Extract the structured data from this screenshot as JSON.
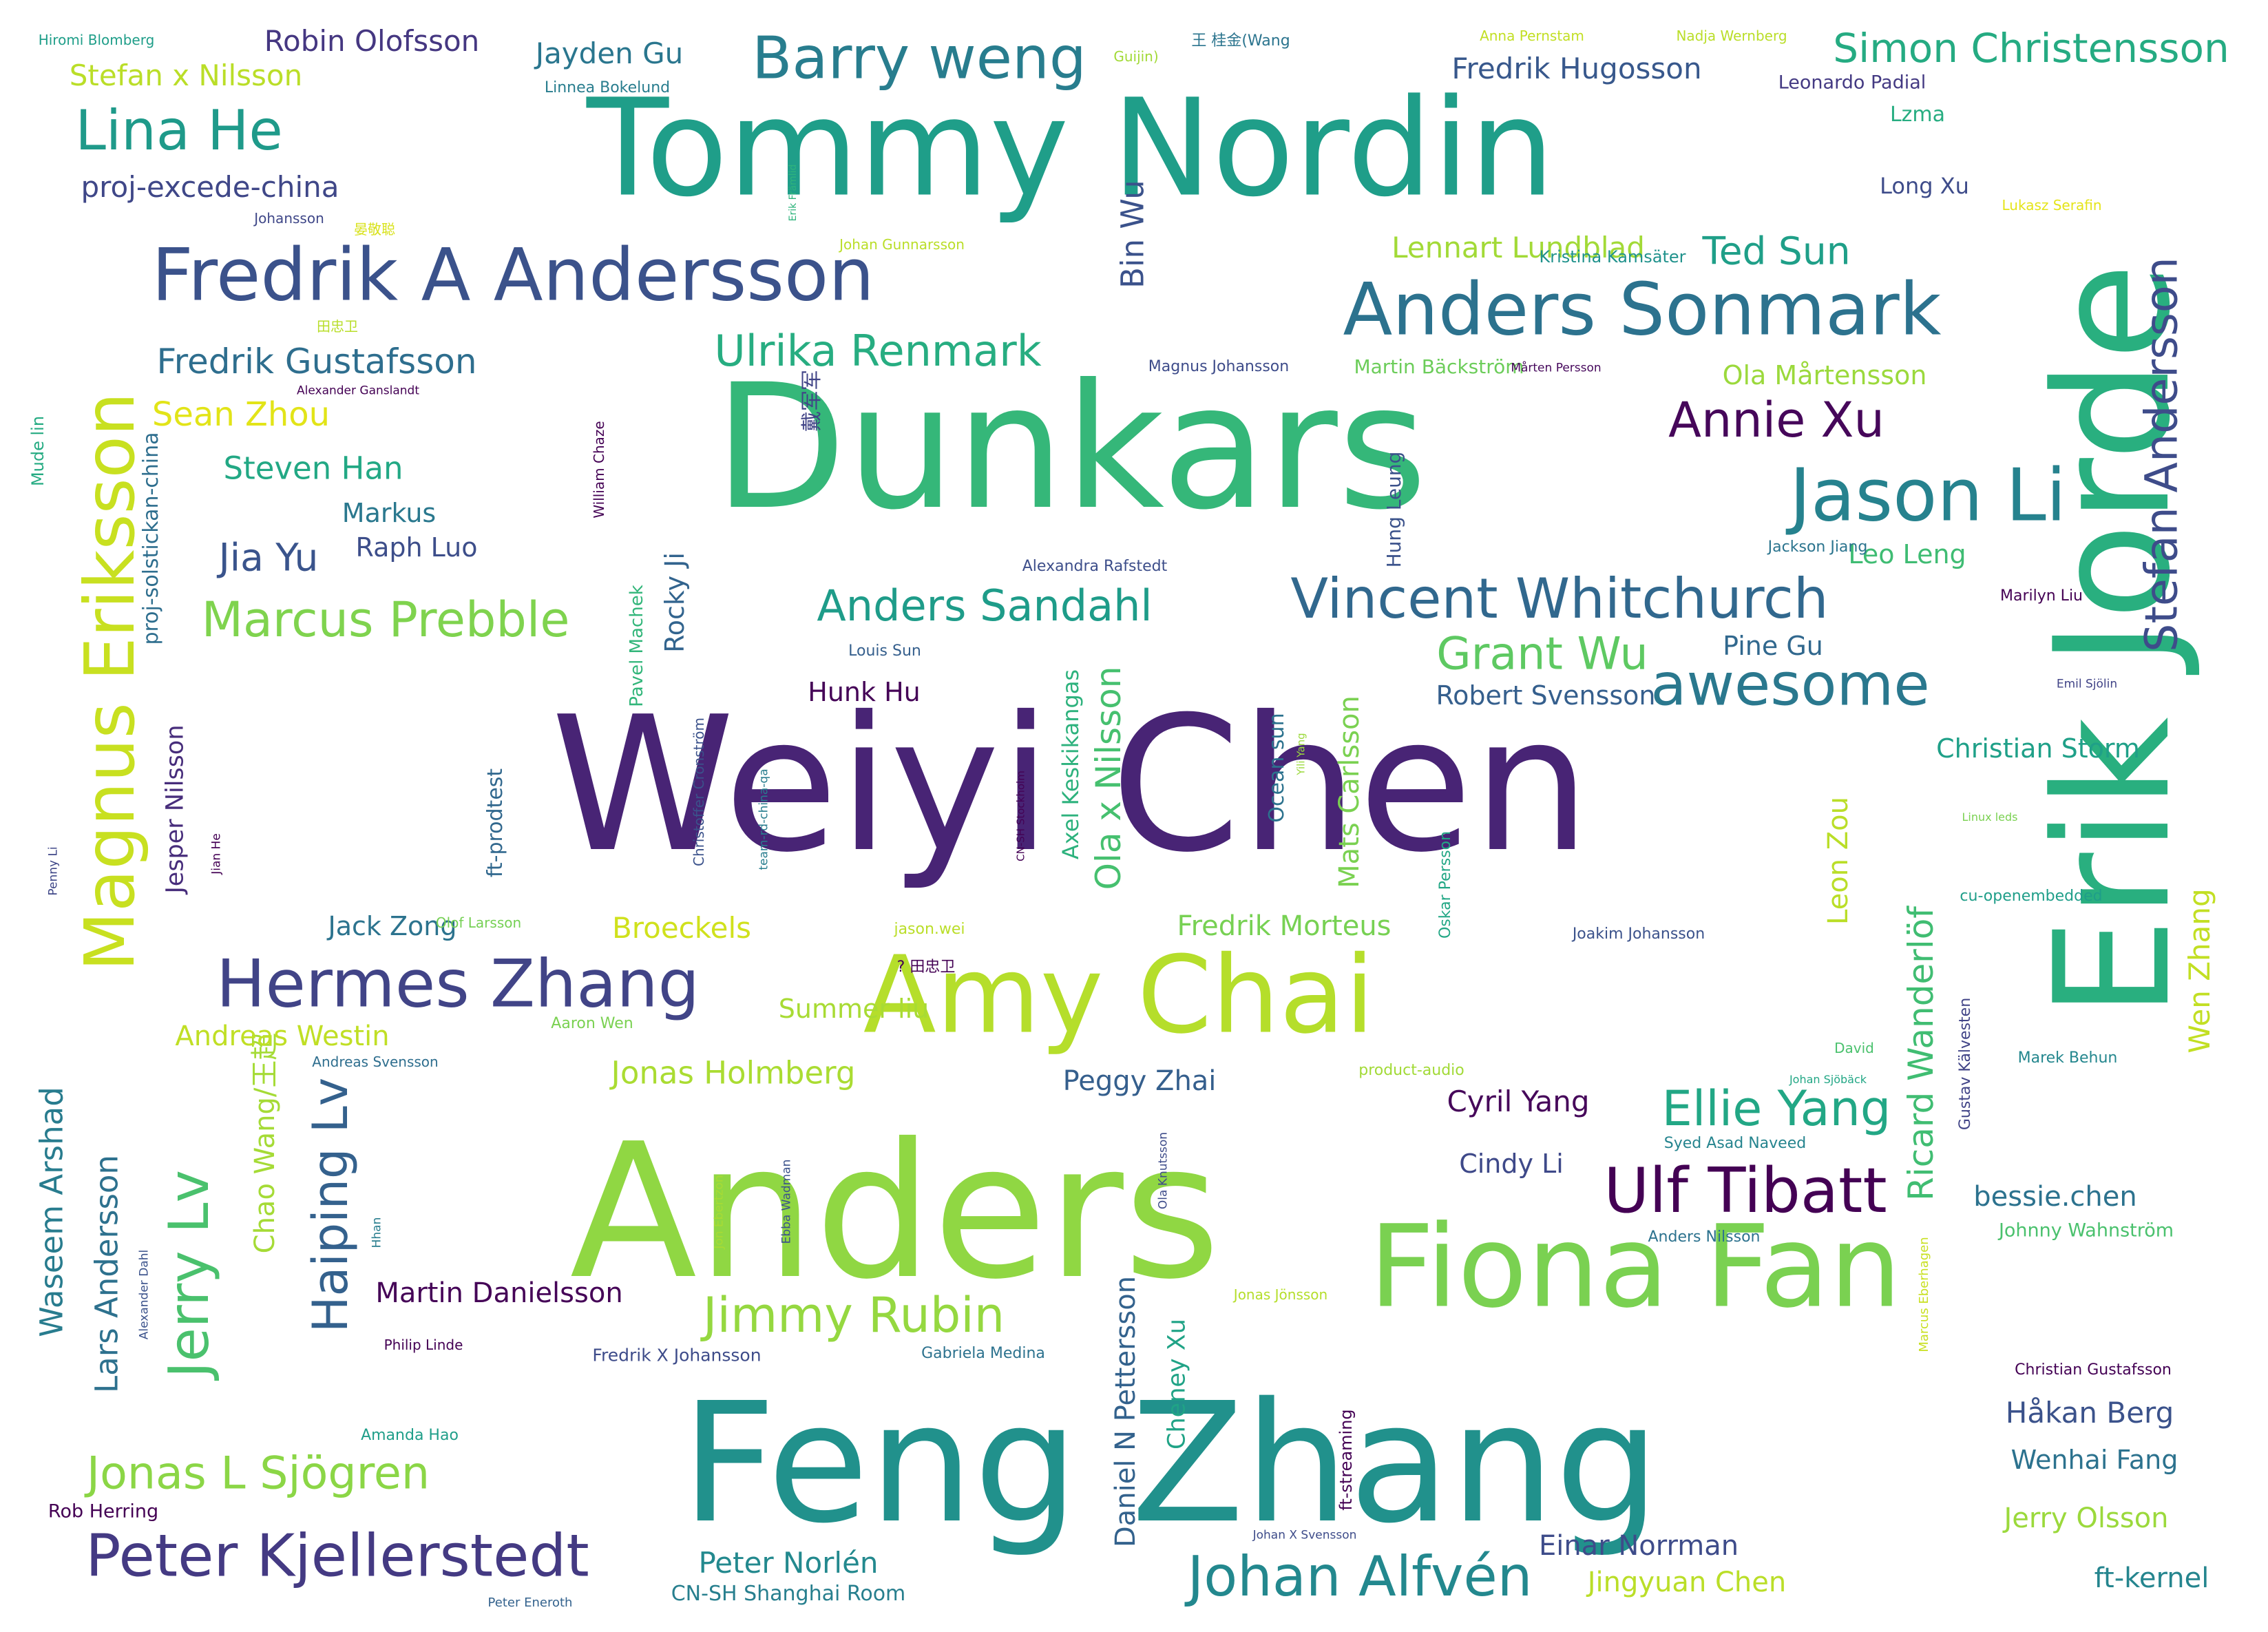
{
  "words": [
    {
      "text": "Weiyi Chen",
      "color": "#482475"
    },
    {
      "text": "Dunkars",
      "color": "#35b779"
    },
    {
      "text": "Anders",
      "color": "#90d743"
    },
    {
      "text": "Feng Zhang",
      "color": "#21918c"
    },
    {
      "text": "Tommy Nordin",
      "color": "#1f9e89"
    },
    {
      "text": "Erik Jorde",
      "color": "#29af7f"
    },
    {
      "text": "Amy Chai",
      "color": "#b5de2b"
    },
    {
      "text": "Fiona Fan",
      "color": "#7ad151"
    },
    {
      "text": "Fredrik A Andersson",
      "color": "#3b528b"
    },
    {
      "text": "Anders Sonmark",
      "color": "#2c728e"
    },
    {
      "text": "Magnus Eriksson",
      "color": "#c8e020"
    },
    {
      "text": "Hermes Zhang",
      "color": "#414487"
    },
    {
      "text": "Vincent Whitchurch",
      "color": "#31688e"
    },
    {
      "text": "Jason Li",
      "color": "#26828e"
    },
    {
      "text": "Barry weng",
      "color": "#287d8e"
    },
    {
      "text": "Johan Alfvén",
      "color": "#23888e"
    },
    {
      "text": "Peter Kjellerstedt",
      "color": "#443a83"
    },
    {
      "text": "awesome",
      "color": "#2a788e"
    },
    {
      "text": "Stefan Andersson",
      "color": "#3e4c8a"
    },
    {
      "text": "Ulf Tibatt",
      "color": "#440154"
    },
    {
      "text": "Lina He",
      "color": "#1f9a8a"
    },
    {
      "text": "Jerry Lv",
      "color": "#4ac16d"
    },
    {
      "text": "Annie Xu",
      "color": "#46075a"
    },
    {
      "text": "Marcus Prebble",
      "color": "#7fd34e"
    },
    {
      "text": "Haiping Lv",
      "color": "#34618d"
    },
    {
      "text": "Jimmy Rubin",
      "color": "#95d840"
    },
    {
      "text": "Ellie Yang",
      "color": "#22a785"
    },
    {
      "text": "Grant Wu",
      "color": "#5ec962"
    },
    {
      "text": "Anders Sandahl",
      "color": "#1e9c89"
    },
    {
      "text": "Jonas L Sjögren",
      "color": "#8bd646"
    },
    {
      "text": "Ulrika Renmark",
      "color": "#27ad81"
    },
    {
      "text": "Simon Christensson",
      "color": "#25ab82"
    },
    {
      "text": "Ricard Wanderlöf",
      "color": "#40bd72"
    },
    {
      "text": "Waseem Arshad",
      "color": "#287c8e"
    },
    {
      "text": "Lars Andersson",
      "color": "#2d718e"
    },
    {
      "text": "Fredrik Gustafsson",
      "color": "#2e6e8e"
    },
    {
      "text": "Robin Olofsson",
      "color": "#453781"
    },
    {
      "text": "Jayden Gu",
      "color": "#2a768e"
    },
    {
      "text": "Stefan x Nilsson",
      "color": "#bade28"
    },
    {
      "text": "proj-excede-china",
      "color": "#3f4788"
    },
    {
      "text": "Ted Sun",
      "color": "#1f9f88"
    },
    {
      "text": "Fredrik Hugosson",
      "color": "#38588c"
    },
    {
      "text": "Lennart Lundblad",
      "color": "#a2da37"
    },
    {
      "text": "Sean Zhou",
      "color": "#e2e418"
    },
    {
      "text": "Steven Han",
      "color": "#22a884"
    },
    {
      "text": "Markus",
      "color": "#2a788e"
    },
    {
      "text": "Jia Yu",
      "color": "#3a548c"
    },
    {
      "text": "Raph Luo",
      "color": "#3d4e8a"
    },
    {
      "text": "Bin Wu",
      "color": "#3b528b"
    },
    {
      "text": "Ola Mårtensson",
      "color": "#9bd93c"
    },
    {
      "text": "Leo Leng",
      "color": "#3fbc73"
    },
    {
      "text": "Pine Gu",
      "color": "#31688e"
    },
    {
      "text": "Robert Svensson",
      "color": "#355f8d"
    },
    {
      "text": "Christian Storm",
      "color": "#1fa088"
    },
    {
      "text": "Wen Zhang",
      "color": "#c2df23"
    },
    {
      "text": "Leon Zou",
      "color": "#bade28"
    },
    {
      "text": "Fredrik Morteus",
      "color": "#77d153"
    },
    {
      "text": "Ola x Nilsson",
      "color": "#46c06f"
    },
    {
      "text": "Axel Keskikangas",
      "color": "#2db27d"
    },
    {
      "text": "Mats Carlsson",
      "color": "#7ad151"
    },
    {
      "text": "Jack Zong",
      "color": "#2c738e"
    },
    {
      "text": "Broeckels",
      "color": "#d0e11c"
    },
    {
      "text": "Jesper Nilsson",
      "color": "#472d7b"
    },
    {
      "text": "Summer liu",
      "color": "#a8db34"
    },
    {
      "text": "Hunk Hu",
      "color": "#450457"
    },
    {
      "text": "Rocky Ji",
      "color": "#32648e"
    },
    {
      "text": "Chao Wang/王超",
      "color": "#a5db36"
    },
    {
      "text": "Andreas Westin",
      "color": "#c0df25"
    },
    {
      "text": "Jonas Holmberg",
      "color": "#aadc32"
    },
    {
      "text": "Peggy Zhai",
      "color": "#355f8d"
    },
    {
      "text": "Cyril Yang",
      "color": "#46075a"
    },
    {
      "text": "Cindy Li",
      "color": "#3e4989"
    },
    {
      "text": "Martin Danielsson",
      "color": "#450457"
    },
    {
      "text": "Daniel N Pettersson",
      "color": "#33628d"
    },
    {
      "text": "Cheney Xu",
      "color": "#20a386"
    },
    {
      "text": "Håkan Berg",
      "color": "#3b528b"
    },
    {
      "text": "Wenhai Fang",
      "color": "#2c728e"
    },
    {
      "text": "Jerry Olsson",
      "color": "#9bd93c"
    },
    {
      "text": "Einar Norrman",
      "color": "#3e4c8a"
    },
    {
      "text": "Jingyuan Chen",
      "color": "#bade28"
    },
    {
      "text": "Peter Norlén",
      "color": "#23898e"
    },
    {
      "text": "CN-SH Shanghai Room",
      "color": "#277f8e"
    },
    {
      "text": "bessie.chen",
      "color": "#2c728e"
    },
    {
      "text": "ft-kernel",
      "color": "#25858e"
    },
    {
      "text": "Gustav Kälvesten",
      "color": "#414487"
    },
    {
      "text": "Long Xu",
      "color": "#3e4c8a"
    },
    {
      "text": "Lzma",
      "color": "#27ad81"
    },
    {
      "text": "Leonardo Padial",
      "color": "#443a83"
    },
    {
      "text": "Hiromi Blomberg",
      "color": "#1f9e89"
    },
    {
      "text": "Linnea Bokelund",
      "color": "#287d8e"
    },
    {
      "text": "Guijin)",
      "color": "#a2da37"
    },
    {
      "text": "王 桂金(Wang",
      "color": "#2b748e"
    },
    {
      "text": "Anna Pernstam",
      "color": "#c2df23"
    },
    {
      "text": "Nadja Wernberg",
      "color": "#bade28"
    },
    {
      "text": "Erik Främlid",
      "color": "#2fb47c"
    },
    {
      "text": "Johansson",
      "color": "#3f4788"
    },
    {
      "text": "晏敬聪",
      "color": "#d8e219"
    },
    {
      "text": "Johan Gunnarsson",
      "color": "#bade28"
    },
    {
      "text": "Lukasz Serafin",
      "color": "#e5e419"
    },
    {
      "text": "Kristina Kamsäter",
      "color": "#20928c"
    },
    {
      "text": "田忠卫",
      "color": "#b8de29"
    },
    {
      "text": "Alexander Ganslandt",
      "color": "#440154"
    },
    {
      "text": "Magnus Johansson",
      "color": "#3e4c8a"
    },
    {
      "text": "Martin Bäckström",
      "color": "#6ccd5a"
    },
    {
      "text": "Mårten Persson",
      "color": "#46085c"
    },
    {
      "text": "戴军军",
      "color": "#414487"
    },
    {
      "text": "William Chaze",
      "color": "#440154"
    },
    {
      "text": "Mude lin",
      "color": "#25ab82"
    },
    {
      "text": "proj-solstickan-china",
      "color": "#2e6e8e"
    },
    {
      "text": "Hung Leung",
      "color": "#3b528b"
    },
    {
      "text": "Jackson Jiang",
      "color": "#2b748e"
    },
    {
      "text": "Alexandra Rafstedt",
      "color": "#3d4e8a"
    },
    {
      "text": "Marilyn Liu",
      "color": "#440154"
    },
    {
      "text": "Pavel Machek",
      "color": "#32b67a"
    },
    {
      "text": "Louis Sun",
      "color": "#355f8d"
    },
    {
      "text": "Emil Sjölin",
      "color": "#414487"
    },
    {
      "text": "Christoffer Cronström",
      "color": "#3b528b"
    },
    {
      "text": "team-rd-china-qa",
      "color": "#287d8e"
    },
    {
      "text": "ft-prodtest",
      "color": "#31688e"
    },
    {
      "text": "Ocean sun",
      "color": "#2c728e"
    },
    {
      "text": "Yili Yang",
      "color": "#9bd93c"
    },
    {
      "text": "CN-SH Stockholm",
      "color": "#440154"
    },
    {
      "text": "Linux leds",
      "color": "#7ad151"
    },
    {
      "text": "Jian He",
      "color": "#440154"
    },
    {
      "text": "Penny Li",
      "color": "#3f4788"
    },
    {
      "text": "cu-openembedded",
      "color": "#1f9e89"
    },
    {
      "text": "Oskar Persson",
      "color": "#22a785"
    },
    {
      "text": "Olof Larsson",
      "color": "#75d054"
    },
    {
      "text": "jason.wei",
      "color": "#bade28"
    },
    {
      "text": "Joakim Johansson",
      "color": "#3b528b"
    },
    {
      "text": "? 田忠卫",
      "color": "#440154"
    },
    {
      "text": "David",
      "color": "#4ac16d"
    },
    {
      "text": "Marek Behun",
      "color": "#24878e"
    },
    {
      "text": "Aaron Wen",
      "color": "#7ad151"
    },
    {
      "text": "Andreas Svensson",
      "color": "#2e6e8e"
    },
    {
      "text": "product-audio",
      "color": "#a2da37"
    },
    {
      "text": "Johan Sjöbäck",
      "color": "#22a785"
    },
    {
      "text": "Syed Asad Naveed",
      "color": "#25848e"
    },
    {
      "text": "Ola Knutsson",
      "color": "#3e4c8a"
    },
    {
      "text": "Ebba Wadman",
      "color": "#3b528b"
    },
    {
      "text": "Jon Ebertzon",
      "color": "#a8db34"
    },
    {
      "text": "Hhan",
      "color": "#287d8e"
    },
    {
      "text": "Alexander Dahl",
      "color": "#3b528b"
    },
    {
      "text": "Anders Nilsson",
      "color": "#2c728e"
    },
    {
      "text": "Marcus Eberhagen",
      "color": "#c8e020"
    },
    {
      "text": "Johnny Wahnström",
      "color": "#4ac16d"
    },
    {
      "text": "Jonas Jönsson",
      "color": "#b5de2b"
    },
    {
      "text": "Philip Linde",
      "color": "#440154"
    },
    {
      "text": "Fredrik X Johansson",
      "color": "#3e4c8a"
    },
    {
      "text": "Gabriela Medina",
      "color": "#2c728e"
    },
    {
      "text": "Christian Gustafsson",
      "color": "#440154"
    },
    {
      "text": "ft-streaming",
      "color": "#440154"
    },
    {
      "text": "Amanda Hao",
      "color": "#1f9e89"
    },
    {
      "text": "Rob Herring",
      "color": "#440154"
    },
    {
      "text": "Johan X Svensson",
      "color": "#3e4c8a"
    },
    {
      "text": "Peter Eneroth",
      "color": "#33628d"
    }
  ]
}
